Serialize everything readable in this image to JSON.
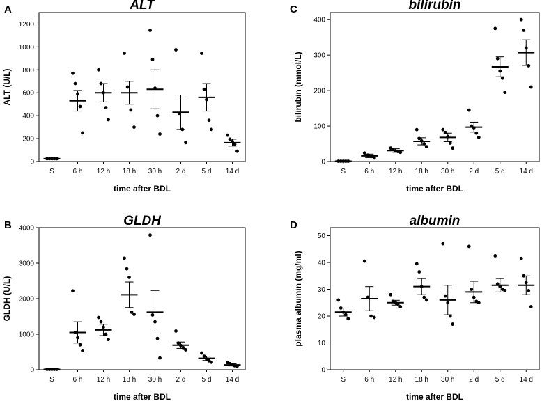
{
  "figure": {
    "panels": [
      "A",
      "B",
      "C",
      "D"
    ]
  },
  "chart_data": [
    {
      "type": "scatter",
      "panel": "A",
      "title": "ALT",
      "xlabel": "time after BDL",
      "ylabel": "ALT (U/L)",
      "categories": [
        "S",
        "6 h",
        "12 h",
        "18 h",
        "30 h",
        "2 d",
        "5 d",
        "14 d"
      ],
      "ylim": [
        0,
        1300
      ],
      "yticks": [
        0,
        200,
        400,
        600,
        800,
        1000,
        1200
      ],
      "points": [
        [
          25,
          25,
          25,
          25,
          25
        ],
        [
          770,
          680,
          590,
          480,
          250
        ],
        [
          800,
          680,
          600,
          470,
          365
        ],
        [
          945,
          650,
          450,
          300
        ],
        [
          1145,
          890,
          640,
          400,
          240
        ],
        [
          975,
          420,
          280,
          165
        ],
        [
          945,
          630,
          540,
          360,
          280
        ],
        [
          230,
          195,
          175,
          150,
          90
        ]
      ],
      "mean": [
        25,
        530,
        600,
        600,
        630,
        430,
        560,
        165
      ],
      "error": [
        5,
        90,
        80,
        100,
        170,
        150,
        120,
        30
      ]
    },
    {
      "type": "scatter",
      "panel": "B",
      "title": "GLDH",
      "xlabel": "time after BDL",
      "ylabel": "GLDH (U/L)",
      "categories": [
        "S",
        "6 h",
        "12 h",
        "18 h",
        "30 h",
        "2 d",
        "5 d",
        "14 d"
      ],
      "ylim": [
        0,
        4000
      ],
      "yticks": [
        0,
        1000,
        2000,
        3000,
        4000
      ],
      "points": [
        [
          10,
          10,
          10,
          10,
          10
        ],
        [
          2220,
          1050,
          900,
          700,
          540
        ],
        [
          1470,
          1350,
          1200,
          1000,
          850
        ],
        [
          3140,
          2840,
          2600,
          1620,
          1560
        ],
        [
          3790,
          1540,
          1350,
          880,
          330
        ],
        [
          1090,
          750,
          680,
          620,
          560
        ],
        [
          470,
          380,
          300,
          250,
          210
        ],
        [
          200,
          170,
          140,
          110,
          100
        ]
      ],
      "mean": [
        10,
        1050,
        1120,
        2110,
        1620,
        690,
        320,
        135
      ],
      "error": [
        5,
        300,
        160,
        360,
        610,
        90,
        60,
        30
      ]
    },
    {
      "type": "scatter",
      "panel": "C",
      "title": "bilirubin",
      "xlabel": "time after BDL",
      "ylabel": "bilirubin (mmol/L)",
      "categories": [
        "S",
        "6 h",
        "12 h",
        "18 h",
        "30 h",
        "2 d",
        "5 d",
        "14 d"
      ],
      "ylim": [
        0,
        420
      ],
      "yticks": [
        0,
        100,
        200,
        300,
        400
      ],
      "points": [
        [
          1,
          1,
          1,
          1,
          1
        ],
        [
          24,
          18,
          14,
          10
        ],
        [
          38,
          34,
          30,
          28,
          26
        ],
        [
          90,
          65,
          58,
          50,
          42
        ],
        [
          90,
          82,
          70,
          52,
          38
        ],
        [
          145,
          100,
          95,
          80,
          68
        ],
        [
          375,
          290,
          255,
          235,
          195
        ],
        [
          400,
          370,
          320,
          270,
          210
        ]
      ],
      "mean": [
        1,
        16,
        31,
        57,
        68,
        97,
        267,
        307
      ],
      "error": [
        1,
        5,
        5,
        10,
        12,
        14,
        28,
        36
      ]
    },
    {
      "type": "scatter",
      "panel": "D",
      "title": "albumin",
      "xlabel": "time after BDL",
      "ylabel": "plasma albumin (mg/ml)",
      "categories": [
        "S",
        "6 h",
        "12 h",
        "18 h",
        "30 h",
        "2 d",
        "5 d",
        "14 d"
      ],
      "ylim": [
        0,
        53
      ],
      "yticks": [
        0,
        10,
        20,
        30,
        40,
        50
      ],
      "points": [
        [
          26,
          23,
          21.5,
          20.5,
          19
        ],
        [
          40.5,
          27,
          20,
          19.5
        ],
        [
          28,
          25.5,
          25,
          24.5,
          23.5
        ],
        [
          39.5,
          36.5,
          31,
          27,
          26
        ],
        [
          47,
          27.5,
          25,
          20,
          17
        ],
        [
          46,
          30,
          27,
          25.5,
          25
        ],
        [
          42.5,
          32,
          31,
          30,
          29.5
        ],
        [
          41.5,
          35,
          32.5,
          29.5,
          23.5
        ]
      ],
      "mean": [
        21.5,
        26.5,
        25,
        31,
        26,
        29,
        31.5,
        31.5
      ],
      "error": [
        1.5,
        4.5,
        0.9,
        3,
        5.5,
        4,
        2.5,
        3.5
      ]
    }
  ]
}
